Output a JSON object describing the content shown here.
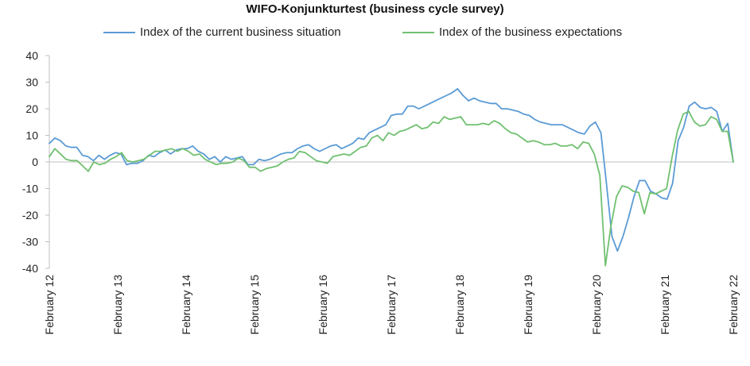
{
  "chart_data": {
    "type": "line",
    "title": "WIFO-Konjunkturtest (business cycle survey)",
    "legend_position": "top",
    "ylim": [
      -40,
      40
    ],
    "yticks": [
      40,
      30,
      20,
      10,
      0,
      -10,
      -20,
      -30,
      -40
    ],
    "xticks": [
      "February 12",
      "February 13",
      "February 14",
      "February 15",
      "February 16",
      "February 17",
      "February 18",
      "February 19",
      "February 20",
      "February 21",
      "February 22"
    ],
    "x_start": "2012-02",
    "x_end": "2022-02",
    "grid": false,
    "series": [
      {
        "name": "Index of the current business situation",
        "color": "#5b9bd5",
        "values": [
          7,
          9,
          8,
          6,
          5.5,
          5.5,
          2.5,
          2,
          0.5,
          2.5,
          1,
          2.5,
          3.5,
          3,
          -1,
          -0.5,
          -0.5,
          0.5,
          2.5,
          2,
          3.5,
          4.5,
          3,
          4.5,
          5,
          5,
          6,
          4,
          3,
          1,
          2,
          0,
          2,
          1,
          1.5,
          2,
          -1,
          -1,
          1,
          0.5,
          1,
          2,
          3,
          3.5,
          3.5,
          5,
          6,
          6.5,
          5,
          4,
          5,
          6,
          6.5,
          5,
          6,
          7,
          9,
          8.5,
          11,
          12,
          13,
          14,
          17.5,
          18,
          18,
          21,
          21,
          20,
          21,
          22,
          23,
          24,
          25,
          26,
          27.5,
          25,
          23,
          24,
          23,
          22.5,
          22,
          22,
          20,
          20,
          19.5,
          19,
          18,
          17.5,
          16,
          15,
          14.5,
          14,
          14,
          14,
          13,
          12,
          11,
          10.5,
          13.5,
          15,
          11,
          -8,
          -28,
          -33.5,
          -28,
          -21,
          -13,
          -7,
          -7,
          -11,
          -12,
          -13.5,
          -14,
          -8,
          8,
          13,
          21,
          22.5,
          20.5,
          20,
          20.5,
          19,
          11.5,
          14.5,
          0
        ]
      },
      {
        "name": "Index of the business expectations",
        "color": "#70c070",
        "values": [
          2,
          5,
          3,
          1,
          0.5,
          0.5,
          -1.5,
          -3.5,
          0,
          -1,
          -0.5,
          1,
          2,
          3.5,
          0.5,
          0,
          0.5,
          1,
          2.5,
          4,
          4,
          4.5,
          5,
          4,
          5,
          4,
          2.5,
          3,
          1,
          0,
          -1,
          -0.5,
          -0.5,
          0,
          1.5,
          0.5,
          -2,
          -2,
          -3.5,
          -2.5,
          -2,
          -1.5,
          0,
          1,
          1.5,
          4,
          3.5,
          2,
          0.5,
          0,
          -0.5,
          2,
          2.5,
          3,
          2.5,
          4,
          5.5,
          6,
          9,
          10,
          8,
          11,
          10,
          11.5,
          12,
          13,
          14,
          12.5,
          13,
          15,
          14.5,
          17,
          16,
          16.5,
          17,
          14,
          14,
          14,
          14.5,
          14,
          15.5,
          14.5,
          12.5,
          11,
          10.5,
          9,
          7.5,
          8,
          7.5,
          6.5,
          6.5,
          7,
          6,
          6,
          6.5,
          5,
          7.5,
          7,
          3,
          -5,
          -39,
          -24,
          -13,
          -9,
          -9.5,
          -11,
          -11.5,
          -19.5,
          -11.5,
          -12,
          -11,
          -10,
          2,
          12,
          18,
          19,
          15,
          13.5,
          14,
          17,
          16,
          11.5,
          11.5,
          0
        ]
      }
    ]
  }
}
